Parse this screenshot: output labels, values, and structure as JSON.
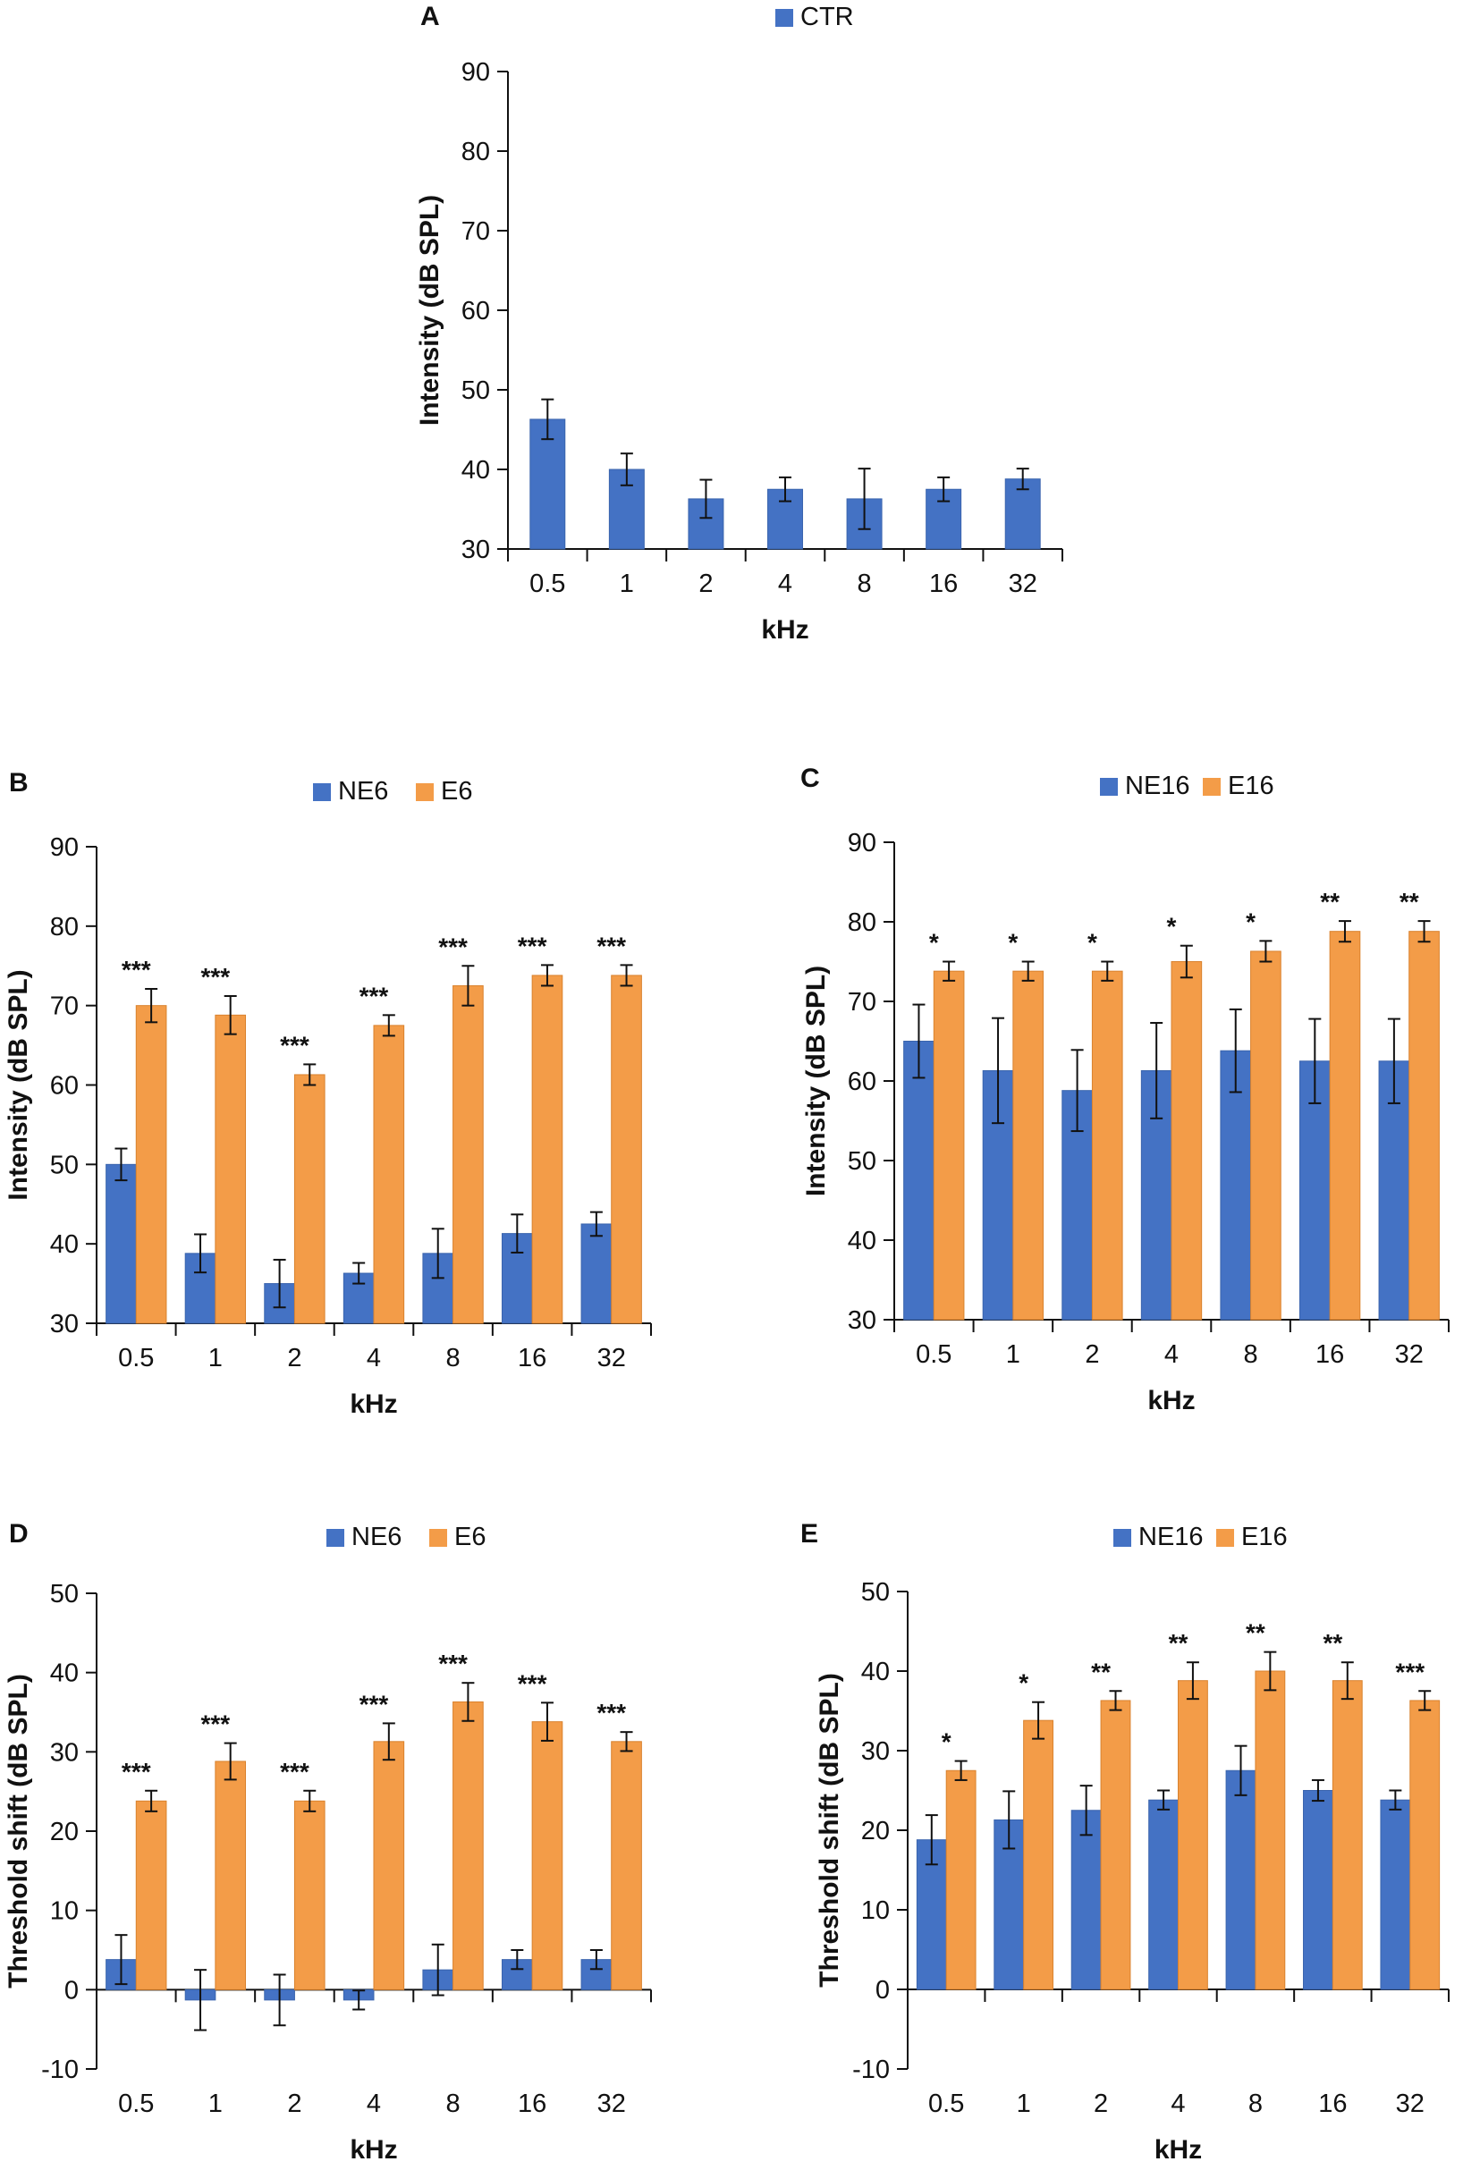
{
  "colors": {
    "blue": "#4472C4",
    "orange": "#F39C48",
    "axis": "#111111",
    "errbar": "#111111"
  },
  "chart_data": [
    {
      "panel": "A",
      "type": "bar",
      "xlabel": "kHz",
      "ylabel": "Intensity (dB SPL)",
      "ylim": [
        30,
        90
      ],
      "yticks": [
        30,
        40,
        50,
        60,
        70,
        80,
        90
      ],
      "categories": [
        "0.5",
        "1",
        "2",
        "4",
        "8",
        "16",
        "32"
      ],
      "legend_position": "top-center",
      "series": [
        {
          "name": "CTR",
          "color": "blue",
          "values": [
            46.3,
            40.0,
            36.3,
            37.5,
            36.3,
            37.5,
            38.8
          ],
          "errors": [
            2.5,
            2.0,
            2.4,
            1.5,
            3.8,
            1.5,
            1.3
          ]
        }
      ],
      "significance": []
    },
    {
      "panel": "B",
      "type": "bar",
      "xlabel": "kHz",
      "ylabel": "Intensity (dB SPL)",
      "ylim": [
        30,
        90
      ],
      "yticks": [
        30,
        40,
        50,
        60,
        70,
        80,
        90
      ],
      "categories": [
        "0.5",
        "1",
        "2",
        "4",
        "8",
        "16",
        "32"
      ],
      "legend_position": "top-center",
      "series": [
        {
          "name": "NE6",
          "color": "blue",
          "values": [
            50.0,
            38.8,
            35.0,
            36.3,
            38.8,
            41.3,
            42.5
          ],
          "errors": [
            2.0,
            2.4,
            3.0,
            1.3,
            3.1,
            2.4,
            1.5
          ]
        },
        {
          "name": "E6",
          "color": "orange",
          "values": [
            70.0,
            68.8,
            61.3,
            67.5,
            72.5,
            73.8,
            73.8
          ],
          "errors": [
            2.1,
            2.4,
            1.3,
            1.3,
            2.5,
            1.3,
            1.3
          ]
        }
      ],
      "significance": [
        "***",
        "***",
        "***",
        "***",
        "***",
        "***",
        "***"
      ]
    },
    {
      "panel": "C",
      "type": "bar",
      "xlabel": "kHz",
      "ylabel": "Intensity (dB SPL)",
      "ylim": [
        30,
        90
      ],
      "yticks": [
        30,
        40,
        50,
        60,
        70,
        80,
        90
      ],
      "categories": [
        "0.5",
        "1",
        "2",
        "4",
        "8",
        "16",
        "32"
      ],
      "legend_position": "top-center",
      "series": [
        {
          "name": "NE16",
          "color": "blue",
          "values": [
            65.0,
            61.3,
            58.8,
            61.3,
            63.8,
            62.5,
            62.5
          ],
          "errors": [
            4.6,
            6.6,
            5.1,
            6.0,
            5.2,
            5.3,
            5.3
          ]
        },
        {
          "name": "E16",
          "color": "orange",
          "values": [
            73.8,
            73.8,
            73.8,
            75.0,
            76.3,
            78.8,
            78.8
          ],
          "errors": [
            1.2,
            1.2,
            1.2,
            2.0,
            1.3,
            1.3,
            1.3
          ]
        }
      ],
      "significance": [
        "*",
        "*",
        "*",
        "*",
        "*",
        "**",
        "**"
      ]
    },
    {
      "panel": "D",
      "type": "bar",
      "xlabel": "kHz",
      "ylabel": "Threshold shift (dB SPL)",
      "ylim": [
        -10,
        50
      ],
      "yticks": [
        -10,
        0,
        10,
        20,
        30,
        40,
        50
      ],
      "categories": [
        "0.5",
        "1",
        "2",
        "4",
        "8",
        "16",
        "32"
      ],
      "legend_position": "top-center",
      "series": [
        {
          "name": "NE6",
          "color": "blue",
          "values": [
            3.8,
            -1.3,
            -1.3,
            -1.3,
            2.5,
            3.8,
            3.8
          ],
          "errors": [
            3.1,
            3.8,
            3.2,
            1.2,
            3.2,
            1.2,
            1.2
          ]
        },
        {
          "name": "E6",
          "color": "orange",
          "values": [
            23.8,
            28.8,
            23.8,
            31.3,
            36.3,
            33.8,
            31.3
          ],
          "errors": [
            1.3,
            2.3,
            1.3,
            2.3,
            2.4,
            2.4,
            1.2
          ]
        }
      ],
      "significance": [
        "***",
        "***",
        "***",
        "***",
        "***",
        "***",
        "***"
      ]
    },
    {
      "panel": "E",
      "type": "bar",
      "xlabel": "kHz",
      "ylabel": "Threshold shift (dB SPL)",
      "ylim": [
        -10,
        50
      ],
      "yticks": [
        -10,
        0,
        10,
        20,
        30,
        40,
        50
      ],
      "categories": [
        "0.5",
        "1",
        "2",
        "4",
        "8",
        "16",
        "32"
      ],
      "legend_position": "top-center",
      "series": [
        {
          "name": "NE16",
          "color": "blue",
          "values": [
            18.8,
            21.3,
            22.5,
            23.8,
            27.5,
            25.0,
            23.8
          ],
          "errors": [
            3.1,
            3.6,
            3.1,
            1.2,
            3.1,
            1.3,
            1.2
          ]
        },
        {
          "name": "E16",
          "color": "orange",
          "values": [
            27.5,
            33.8,
            36.3,
            38.8,
            40.0,
            38.8,
            36.3
          ],
          "errors": [
            1.2,
            2.3,
            1.2,
            2.3,
            2.4,
            2.3,
            1.2
          ]
        }
      ],
      "significance": [
        "*",
        "*",
        "**",
        "**",
        "**",
        "**",
        "***"
      ]
    }
  ]
}
